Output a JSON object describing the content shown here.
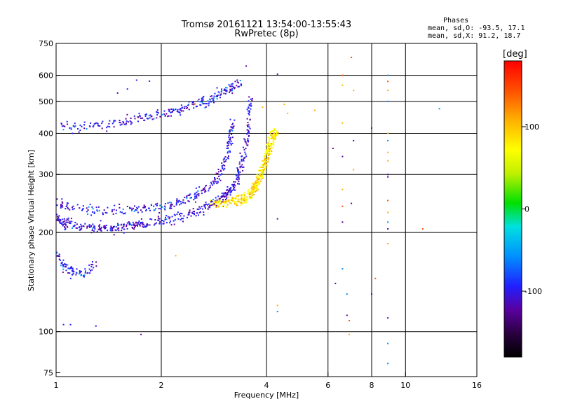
{
  "header": {
    "title_line1": "Tromsø 20161121 13:54:00-13:55:43",
    "title_line2": "RwPretec (8p)"
  },
  "phase_stats": {
    "heading": "Phases",
    "line_o": "mean, sd,O: -93.5, 17.1",
    "line_x": "mean, sd,X:  91.2, 18.7"
  },
  "colors": {
    "grid": "#000000",
    "palette": [
      "#000000",
      "#2a0040",
      "#5a00a0",
      "#2020ff",
      "#0090ff",
      "#00e0e0",
      "#00e000",
      "#c0f000",
      "#ffff00",
      "#ffb000",
      "#ff5000",
      "#ff0000"
    ]
  },
  "chart_data": {
    "type": "scatter",
    "title": "Tromsø 20161121 13:54:00-13:55:43",
    "subtitle": "RwPretec (8p)",
    "xlabel": "Frequency [MHz]",
    "ylabel": "Stationary phase Virtual Height [km]",
    "x_scale": "log2",
    "y_scale": "log",
    "xlim": [
      1,
      16
    ],
    "ylim": [
      73,
      750
    ],
    "x_ticks": [
      1,
      2,
      4,
      6,
      8,
      10,
      16
    ],
    "y_ticks": [
      75,
      100,
      200,
      300,
      400,
      500,
      600,
      750
    ],
    "grid_x": [
      2,
      4,
      6,
      8,
      10
    ],
    "grid_y": [
      100,
      200,
      300,
      400,
      500,
      600
    ],
    "grid": true,
    "colorbar": {
      "label": "[deg]",
      "range": [
        -180,
        180
      ],
      "ticks": [
        100,
        0,
        -100
      ],
      "placement": "right"
    },
    "series": [
      {
        "phase_mean": -93.5,
        "trace": [
          [
            1.0,
            222
          ],
          [
            1.05,
            214
          ],
          [
            1.1,
            211
          ],
          [
            1.2,
            208
          ],
          [
            1.3,
            207
          ],
          [
            1.4,
            207
          ],
          [
            1.5,
            208
          ],
          [
            1.6,
            209
          ],
          [
            1.7,
            211
          ],
          [
            1.8,
            213
          ],
          [
            2.0,
            217
          ],
          [
            2.2,
            222
          ],
          [
            2.4,
            228
          ],
          [
            2.6,
            235
          ],
          [
            2.8,
            244
          ],
          [
            3.0,
            255
          ],
          [
            3.1,
            262
          ],
          [
            3.2,
            272
          ],
          [
            3.3,
            290
          ],
          [
            3.4,
            320
          ],
          [
            3.5,
            370
          ],
          [
            3.55,
            430
          ],
          [
            3.6,
            520
          ]
        ]
      },
      {
        "phase_mean": -90.0,
        "trace": [
          [
            1.0,
            248
          ],
          [
            1.1,
            238
          ],
          [
            1.3,
            234
          ],
          [
            1.5,
            233
          ],
          [
            1.7,
            235
          ],
          [
            1.9,
            238
          ],
          [
            2.1,
            242
          ],
          [
            2.3,
            249
          ],
          [
            2.5,
            258
          ],
          [
            2.7,
            270
          ],
          [
            2.9,
            290
          ],
          [
            3.0,
            315
          ],
          [
            3.1,
            350
          ],
          [
            3.15,
            390
          ],
          [
            3.2,
            440
          ]
        ]
      },
      {
        "phase_mean": -88.0,
        "trace": [
          [
            1.05,
            420
          ],
          [
            1.2,
            418
          ],
          [
            1.4,
            425
          ],
          [
            1.6,
            435
          ],
          [
            1.8,
            448
          ],
          [
            2.0,
            458
          ],
          [
            2.2,
            468
          ],
          [
            2.4,
            482
          ],
          [
            2.6,
            497
          ],
          [
            2.8,
            510
          ],
          [
            3.0,
            530
          ],
          [
            3.2,
            555
          ],
          [
            3.4,
            575
          ]
        ]
      },
      {
        "phase_mean": 91.2,
        "trace": [
          [
            2.8,
            243
          ],
          [
            3.0,
            246
          ],
          [
            3.2,
            250
          ],
          [
            3.4,
            256
          ],
          [
            3.6,
            265
          ],
          [
            3.7,
            275
          ],
          [
            3.8,
            290
          ],
          [
            3.9,
            315
          ],
          [
            4.0,
            345
          ],
          [
            4.1,
            380
          ],
          [
            4.2,
            410
          ]
        ]
      },
      {
        "phase_mean": 90.0,
        "trace": [
          [
            3.3,
            243
          ],
          [
            3.5,
            253
          ],
          [
            3.7,
            268
          ],
          [
            3.8,
            288
          ],
          [
            3.9,
            310
          ],
          [
            4.0,
            335
          ],
          [
            4.1,
            360
          ],
          [
            4.2,
            385
          ],
          [
            4.3,
            400
          ]
        ]
      },
      {
        "phase_mean": -85.0,
        "trace": [
          [
            1.0,
            175
          ],
          [
            1.05,
            158
          ],
          [
            1.1,
            152
          ],
          [
            1.2,
            150
          ],
          [
            1.3,
            160
          ]
        ]
      }
    ],
    "scatter_points": [
      [
        1.05,
        105,
        -95
      ],
      [
        1.1,
        105,
        -95
      ],
      [
        1.3,
        104,
        -95
      ],
      [
        1.75,
        98,
        -110
      ],
      [
        1.85,
        576,
        -80
      ],
      [
        1.7,
        580,
        -80
      ],
      [
        1.6,
        545,
        -70
      ],
      [
        1.5,
        530,
        -100
      ],
      [
        4.3,
        605,
        -100
      ],
      [
        4.3,
        220,
        -100
      ],
      [
        4.3,
        120,
        100
      ],
      [
        4.3,
        115,
        -40
      ],
      [
        5.5,
        470,
        120
      ],
      [
        6.2,
        360,
        -100
      ],
      [
        6.3,
        140,
        -100
      ],
      [
        6.6,
        600,
        150
      ],
      [
        6.6,
        560,
        120
      ],
      [
        6.6,
        430,
        130
      ],
      [
        6.6,
        340,
        -100
      ],
      [
        6.6,
        270,
        120
      ],
      [
        6.6,
        240,
        150
      ],
      [
        6.6,
        215,
        -100
      ],
      [
        6.6,
        155,
        -40
      ],
      [
        6.8,
        130,
        -40
      ],
      [
        6.8,
        112,
        -100
      ],
      [
        6.9,
        108,
        150
      ],
      [
        6.9,
        98,
        120
      ],
      [
        7.0,
        680,
        160
      ],
      [
        7.1,
        540,
        120
      ],
      [
        7.1,
        380,
        -100
      ],
      [
        7.1,
        310,
        120
      ],
      [
        7.0,
        245,
        -100
      ],
      [
        8.0,
        415,
        -100
      ],
      [
        8.0,
        130,
        -100
      ],
      [
        8.2,
        145,
        150
      ],
      [
        8.9,
        600,
        -40
      ],
      [
        8.9,
        575,
        140
      ],
      [
        8.9,
        540,
        130
      ],
      [
        8.9,
        500,
        -40
      ],
      [
        8.9,
        400,
        130
      ],
      [
        8.9,
        380,
        -40
      ],
      [
        8.9,
        350,
        130
      ],
      [
        8.9,
        330,
        120
      ],
      [
        8.9,
        300,
        -100
      ],
      [
        8.9,
        295,
        -120
      ],
      [
        8.9,
        250,
        150
      ],
      [
        8.9,
        230,
        120
      ],
      [
        8.9,
        215,
        -40
      ],
      [
        8.9,
        205,
        -100
      ],
      [
        8.9,
        185,
        120
      ],
      [
        8.9,
        110,
        -100
      ],
      [
        8.9,
        92,
        -40
      ],
      [
        8.9,
        80,
        -40
      ],
      [
        11.2,
        205,
        160
      ],
      [
        12.5,
        475,
        -40
      ],
      [
        2.2,
        170,
        100
      ],
      [
        2.5,
        490,
        120
      ],
      [
        3.5,
        640,
        -100
      ],
      [
        3.9,
        480,
        120
      ],
      [
        4.5,
        490,
        120
      ],
      [
        4.6,
        460,
        120
      ]
    ]
  }
}
